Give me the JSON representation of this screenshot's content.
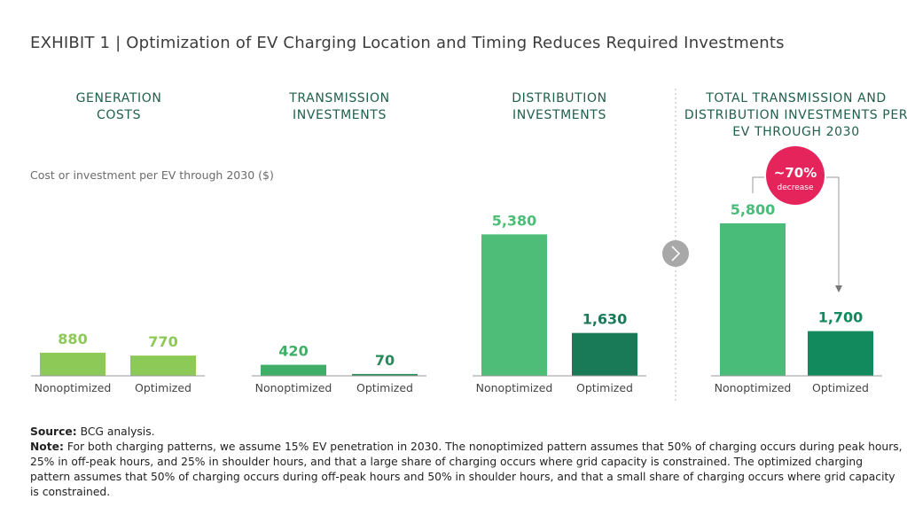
{
  "title": "EXHIBIT 1 | Optimization of EV Charging Location and Timing Reduces Required Investments",
  "axis_label": "Cost or investment per EV through 2030 ($)",
  "chart_data": [
    {
      "type": "bar",
      "title": "GENERATION COSTS",
      "categories": [
        "Nonoptimized",
        "Optimized"
      ],
      "values": [
        880,
        770
      ],
      "value_labels": [
        "880",
        "770"
      ],
      "colors": [
        "#8cc957",
        "#8cc957"
      ],
      "ylim": [
        0,
        6000
      ]
    },
    {
      "type": "bar",
      "title": "TRANSMISSION INVESTMENTS",
      "categories": [
        "Nonoptimized",
        "Optimized"
      ],
      "values": [
        420,
        70
      ],
      "value_labels": [
        "420",
        "70"
      ],
      "colors": [
        "#3fae66",
        "#2a8a5a"
      ],
      "ylim": [
        0,
        6000
      ]
    },
    {
      "type": "bar",
      "title": "DISTRIBUTION INVESTMENTS",
      "categories": [
        "Nonoptimized",
        "Optimized"
      ],
      "values": [
        5380,
        1630
      ],
      "value_labels": [
        "5,380",
        "1,630"
      ],
      "colors": [
        "#4dbd78",
        "#197a57"
      ],
      "ylim": [
        0,
        6000
      ]
    },
    {
      "type": "bar",
      "title": "TOTAL TRANSMISSION AND DISTRIBUTION INVESTMENTS PER EV THROUGH 2030",
      "categories": [
        "Nonoptimized",
        "Optimized"
      ],
      "values": [
        5800,
        1700
      ],
      "value_labels": [
        "5,800",
        "1,700"
      ],
      "colors": [
        "#48bc78",
        "#138a5e"
      ],
      "ylim": [
        0,
        6000
      ],
      "annotation": {
        "text": "~70%",
        "subtext": "decrease"
      }
    }
  ],
  "source_label": "Source:",
  "source": "BCG analysis.",
  "note_label": "Note:",
  "note": "For both charging patterns, we assume 15% EV penetration in 2030. The nonoptimized pattern assumes that 50% of charging occurs during peak hours, 25% in off-peak hours, and 25% in shoulder hours, and that a large share of charging occurs where grid capacity is constrained. The optimized charging pattern assumes that 50% of charging occurs during off-peak hours and 50% in shoulder hours, and that a small share of charging occurs where grid capacity is constrained."
}
